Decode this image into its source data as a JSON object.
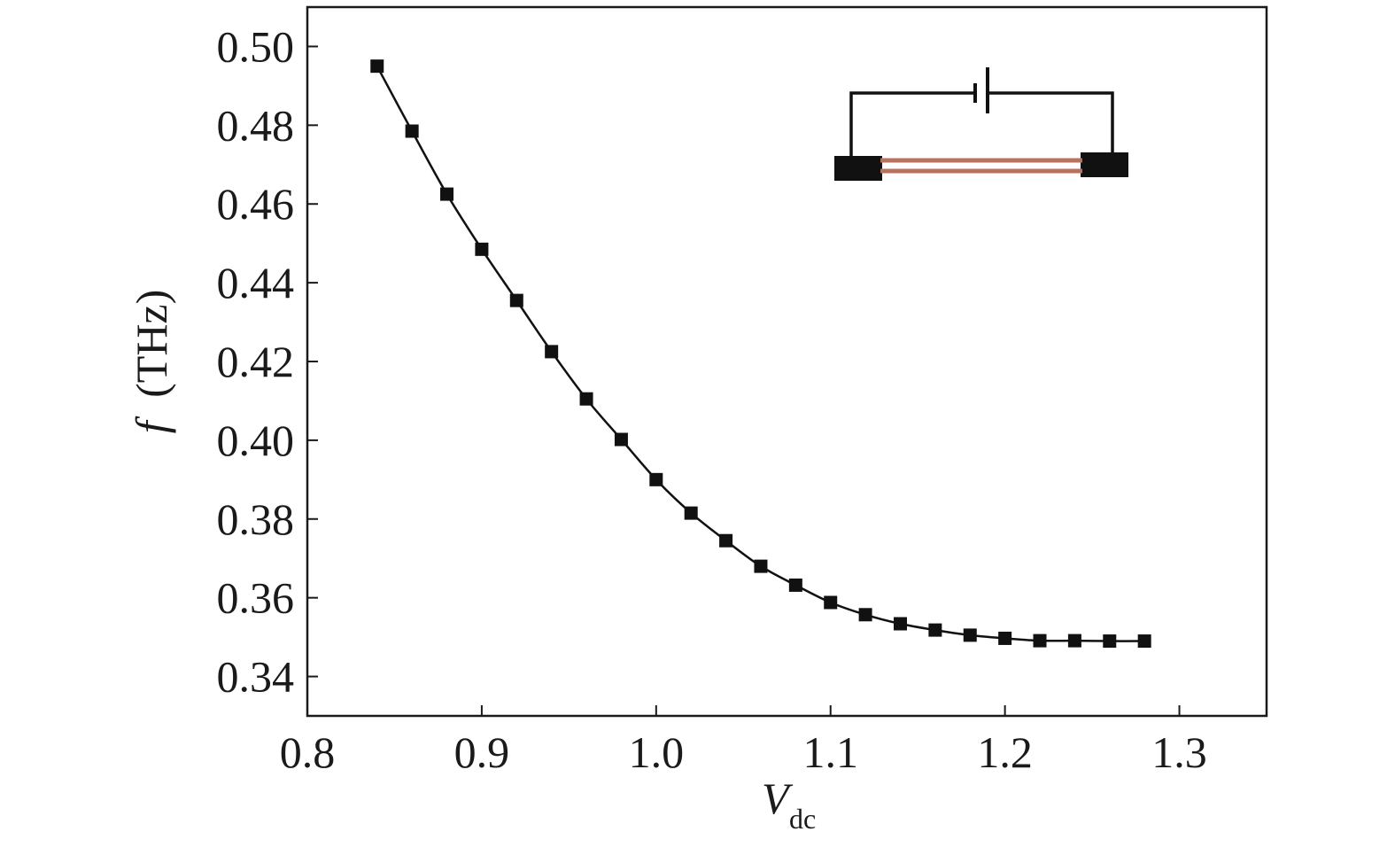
{
  "chart_data": {
    "type": "line",
    "title": "",
    "xlabel": {
      "main": "V",
      "sub": "dc"
    },
    "ylabel": {
      "symbol": "f",
      "unit": "(THz)"
    },
    "xlim": [
      0.8,
      1.35
    ],
    "ylim": [
      0.33,
      0.51
    ],
    "x_ticks": [
      0.8,
      0.9,
      1.0,
      1.1,
      1.2,
      1.3
    ],
    "x_tick_labels": [
      "0.8",
      "0.9",
      "1.0",
      "1.1",
      "1.2",
      "1.3"
    ],
    "y_ticks": [
      0.34,
      0.36,
      0.38,
      0.4,
      0.42,
      0.44,
      0.46,
      0.48,
      0.5
    ],
    "y_tick_labels": [
      "0.34",
      "0.36",
      "0.38",
      "0.40",
      "0.42",
      "0.44",
      "0.46",
      "0.48",
      "0.50"
    ],
    "grid": false,
    "legend": "none",
    "marker": "square",
    "series": [
      {
        "x": [
          0.84,
          0.86,
          0.88,
          0.9,
          0.92,
          0.94,
          0.96,
          0.98,
          1.0,
          1.02,
          1.04,
          1.06,
          1.08,
          1.1,
          1.12,
          1.14,
          1.16,
          1.18,
          1.2,
          1.22,
          1.24,
          1.26,
          1.28
        ],
        "y": [
          0.495,
          0.4785,
          0.4625,
          0.4485,
          0.4355,
          0.4225,
          0.4105,
          0.4002,
          0.39,
          0.3815,
          0.3745,
          0.368,
          0.3632,
          0.3588,
          0.3557,
          0.3534,
          0.3518,
          0.3505,
          0.3497,
          0.3491,
          0.3491,
          0.349,
          0.349
        ],
        "color": "#111111"
      }
    ],
    "inset": {
      "description_free": true,
      "electrode_color": "#111111",
      "wire_color": "#111111",
      "strip_color": "#b8735e"
    }
  }
}
